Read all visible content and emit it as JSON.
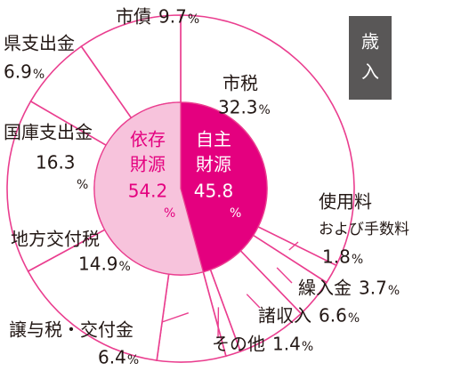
{
  "chart_data": {
    "type": "pie",
    "badge": [
      "歳",
      "入"
    ],
    "unit": "%",
    "inner": {
      "labels": [
        [
          "自主",
          "財源"
        ],
        [
          "依存",
          "財源"
        ]
      ],
      "values": [
        45.8,
        54.2
      ],
      "colors": [
        "#e4007f",
        "#f7c3dc"
      ],
      "label_colors": [
        "#ffffff",
        "#e4007f"
      ]
    },
    "outer": {
      "labels": [
        [
          "市税"
        ],
        [
          "使用料",
          "および手数料"
        ],
        [
          "繰入金"
        ],
        [
          "諸収入"
        ],
        [
          "その他"
        ],
        [
          "譲与税・交付金"
        ],
        [
          "地方交付税"
        ],
        [
          "国庫支出金"
        ],
        [
          "県支出金"
        ],
        [
          "市債"
        ]
      ],
      "values": [
        32.3,
        1.8,
        3.7,
        6.6,
        1.4,
        6.4,
        14.9,
        16.3,
        6.9,
        9.7
      ],
      "color": "#ffffff",
      "edge": "#ea3e8f"
    }
  }
}
